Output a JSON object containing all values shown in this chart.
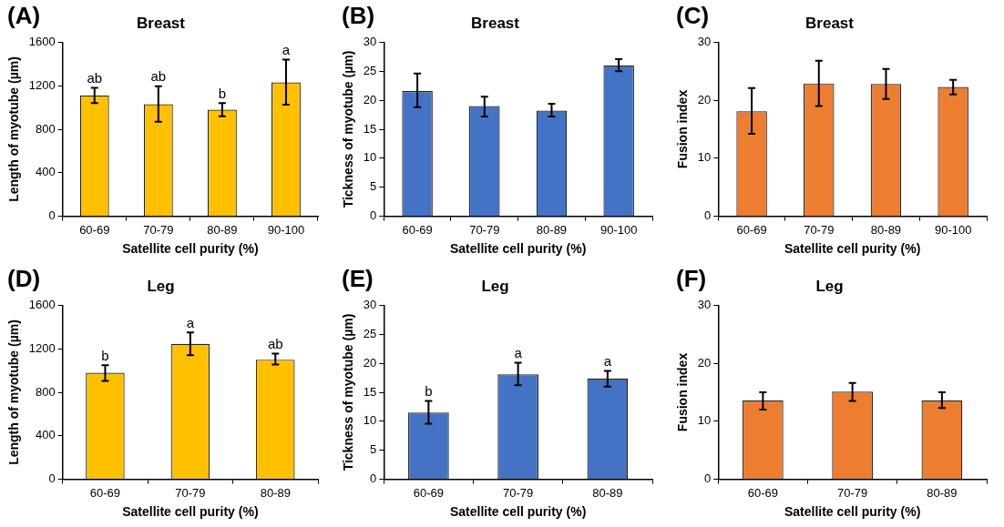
{
  "chart_data": [
    {
      "type": "bar",
      "title": "Breast",
      "xlabel": "Satellite cell purity (%)",
      "ylabel": "Length of myotube (µm)",
      "categories": [
        "60-69",
        "70-79",
        "80-89",
        "90-100"
      ],
      "values": [
        1110,
        1030,
        980,
        1230
      ],
      "errors": [
        [
          1040,
          1180
        ],
        [
          870,
          1195
        ],
        [
          920,
          1040
        ],
        [
          1025,
          1440
        ]
      ],
      "color": "#ffc000",
      "ylim": [
        0,
        1600
      ],
      "yticks": [
        0,
        400,
        800,
        1200,
        1600
      ],
      "annotations": [
        "(A)",
        {
          "text": "ab",
          "x": "60-69",
          "y": 1180
        },
        {
          "text": "ab",
          "x": "70-79",
          "y": 1195
        },
        {
          "text": "b",
          "x": "80-89",
          "y": 1040
        },
        {
          "text": "a",
          "x": "90-100",
          "y": 1440
        }
      ]
    },
    {
      "type": "bar",
      "title": "Breast",
      "xlabel": "Satellite cell purity (%)",
      "ylabel": "Tickness of myotube (µm)",
      "categories": [
        "60-69",
        "70-79",
        "80-89",
        "90-100"
      ],
      "values": [
        21.6,
        19,
        18.2,
        26
      ],
      "errors": [
        [
          18.8,
          24.6
        ],
        [
          17.2,
          20.6
        ],
        [
          17.2,
          19.4
        ],
        [
          25,
          27.1
        ]
      ],
      "color": "#4472c4",
      "ylim": [
        0,
        30
      ],
      "yticks": [
        0,
        5,
        10,
        15,
        20,
        25,
        30
      ],
      "annotations": [
        "(B)"
      ]
    },
    {
      "type": "bar",
      "title": "Breast",
      "xlabel": "Satellite cell purity (%)",
      "ylabel": "Fusion index",
      "categories": [
        "60-69",
        "70-79",
        "80-89",
        "90-100"
      ],
      "values": [
        18.1,
        22.9,
        22.8,
        22.3
      ],
      "errors": [
        [
          14.2,
          22.1
        ],
        [
          19,
          26.8
        ],
        [
          20.2,
          25.4
        ],
        [
          21,
          23.5
        ]
      ],
      "color": "#ed7d31",
      "ylim": [
        0,
        30
      ],
      "yticks": [
        0,
        10,
        20,
        30
      ],
      "annotations": [
        "(C)"
      ]
    },
    {
      "type": "bar",
      "title": "Leg",
      "xlabel": "Satellite cell purity (%)",
      "ylabel": "Length of myotube (µm)",
      "categories": [
        "60-69",
        "70-79",
        "80-89"
      ],
      "values": [
        980,
        1245,
        1100
      ],
      "errors": [
        [
          905,
          1050
        ],
        [
          1140,
          1350
        ],
        [
          1055,
          1155
        ]
      ],
      "color": "#ffc000",
      "ylim": [
        0,
        1600
      ],
      "yticks": [
        0,
        400,
        800,
        1200,
        1600
      ],
      "annotations": [
        "(D)",
        {
          "text": "b",
          "x": "60-69",
          "y": 1050
        },
        {
          "text": "a",
          "x": "70-79",
          "y": 1350
        },
        {
          "text": "ab",
          "x": "80-89",
          "y": 1155
        }
      ]
    },
    {
      "type": "bar",
      "title": "Leg",
      "xlabel": "Satellite cell purity (%)",
      "ylabel": "Tickness of myotube (µm)",
      "categories": [
        "60-69",
        "70-79",
        "80-89"
      ],
      "values": [
        11.5,
        18.1,
        17.4
      ],
      "errors": [
        [
          9.6,
          13.5
        ],
        [
          16.2,
          20.1
        ],
        [
          16,
          18.7
        ]
      ],
      "color": "#4472c4",
      "ylim": [
        0,
        30
      ],
      "yticks": [
        0,
        5,
        10,
        15,
        20,
        25,
        30
      ],
      "annotations": [
        "(E)",
        {
          "text": "b",
          "x": "60-69",
          "y": 13.5
        },
        {
          "text": "a",
          "x": "70-79",
          "y": 20.1
        },
        {
          "text": "a",
          "x": "80-89",
          "y": 18.7
        }
      ]
    },
    {
      "type": "bar",
      "title": "Leg",
      "xlabel": "Satellite cell purity (%)",
      "ylabel": "Fusion index",
      "categories": [
        "60-69",
        "70-79",
        "80-89"
      ],
      "values": [
        13.6,
        15.1,
        13.6
      ],
      "errors": [
        [
          12,
          15
        ],
        [
          13.5,
          16.6
        ],
        [
          12.3,
          15
        ]
      ],
      "color": "#ed7d31",
      "ylim": [
        0,
        30
      ],
      "yticks": [
        0,
        10,
        20,
        30
      ],
      "annotations": [
        "(F)"
      ]
    }
  ]
}
